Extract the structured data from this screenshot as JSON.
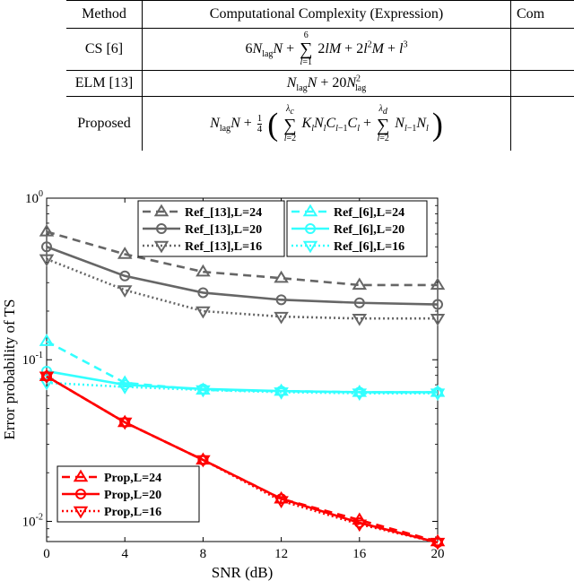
{
  "table": {
    "headers": [
      "Method",
      "Computational Complexity (Expression)",
      "Com"
    ],
    "rows": [
      {
        "method": "CS [6]"
      },
      {
        "method": "ELM [13]"
      },
      {
        "method": "Proposed"
      }
    ]
  },
  "chart_data": {
    "type": "line",
    "xlabel": "SNR (dB)",
    "ylabel": "Error probability of TS",
    "yscale": "log",
    "xlim": [
      0,
      20
    ],
    "ylim": [
      0.0075,
      1.0
    ],
    "x": [
      0,
      4,
      8,
      12,
      16,
      20
    ],
    "xticks": [
      "0",
      "4",
      "8",
      "12",
      "16",
      "20"
    ],
    "yticks": [
      {
        "value": 1.0,
        "base": "10",
        "exp": "0"
      },
      {
        "value": 0.1,
        "base": "10",
        "exp": "-1"
      },
      {
        "value": 0.01,
        "base": "10",
        "exp": "-2"
      }
    ],
    "grid": false,
    "series": [
      {
        "name": "Ref_[13],L=24",
        "color": "#666666",
        "dash": "dashed",
        "marker": "triangle-up",
        "values": [
          0.62,
          0.45,
          0.35,
          0.32,
          0.29,
          0.29
        ]
      },
      {
        "name": "Ref_[13],L=20",
        "color": "#666666",
        "dash": "solid",
        "marker": "circle",
        "values": [
          0.5,
          0.33,
          0.26,
          0.235,
          0.225,
          0.22
        ]
      },
      {
        "name": "Ref_[13],L=16",
        "color": "#666666",
        "dash": "dotted",
        "marker": "triangle-down",
        "values": [
          0.42,
          0.27,
          0.2,
          0.185,
          0.18,
          0.18
        ]
      },
      {
        "name": "Ref_[6],L=24",
        "color": "#33FFFF",
        "dash": "dashed",
        "marker": "triangle-up",
        "values": [
          0.13,
          0.072,
          0.065,
          0.064,
          0.063,
          0.063
        ]
      },
      {
        "name": "Ref_[6],L=20",
        "color": "#33FFFF",
        "dash": "solid",
        "marker": "circle",
        "values": [
          0.085,
          0.07,
          0.066,
          0.064,
          0.063,
          0.063
        ]
      },
      {
        "name": "Ref_[6],L=16",
        "color": "#33FFFF",
        "dash": "dotted",
        "marker": "triangle-down",
        "values": [
          0.072,
          0.068,
          0.065,
          0.063,
          0.062,
          0.062
        ]
      },
      {
        "name": "Prop,L=24",
        "color": "#FF0000",
        "dash": "dashed",
        "marker": "triangle-up",
        "values": [
          0.079,
          0.041,
          0.024,
          0.0138,
          0.0102,
          0.0075
        ]
      },
      {
        "name": "Prop,L=20",
        "color": "#FF0000",
        "dash": "solid",
        "marker": "circle",
        "values": [
          0.079,
          0.041,
          0.024,
          0.0138,
          0.0098,
          0.0074
        ]
      },
      {
        "name": "Prop,L=16",
        "color": "#FF0000",
        "dash": "dotted",
        "marker": "triangle-down",
        "values": [
          0.079,
          0.041,
          0.024,
          0.0134,
          0.0096,
          0.0074
        ]
      }
    ],
    "legends": [
      {
        "placement": "top-left",
        "series": [
          0,
          1,
          2
        ]
      },
      {
        "placement": "top-right",
        "series": [
          3,
          4,
          5
        ]
      },
      {
        "placement": "bottom-left",
        "series": [
          6,
          7,
          8
        ]
      }
    ]
  }
}
